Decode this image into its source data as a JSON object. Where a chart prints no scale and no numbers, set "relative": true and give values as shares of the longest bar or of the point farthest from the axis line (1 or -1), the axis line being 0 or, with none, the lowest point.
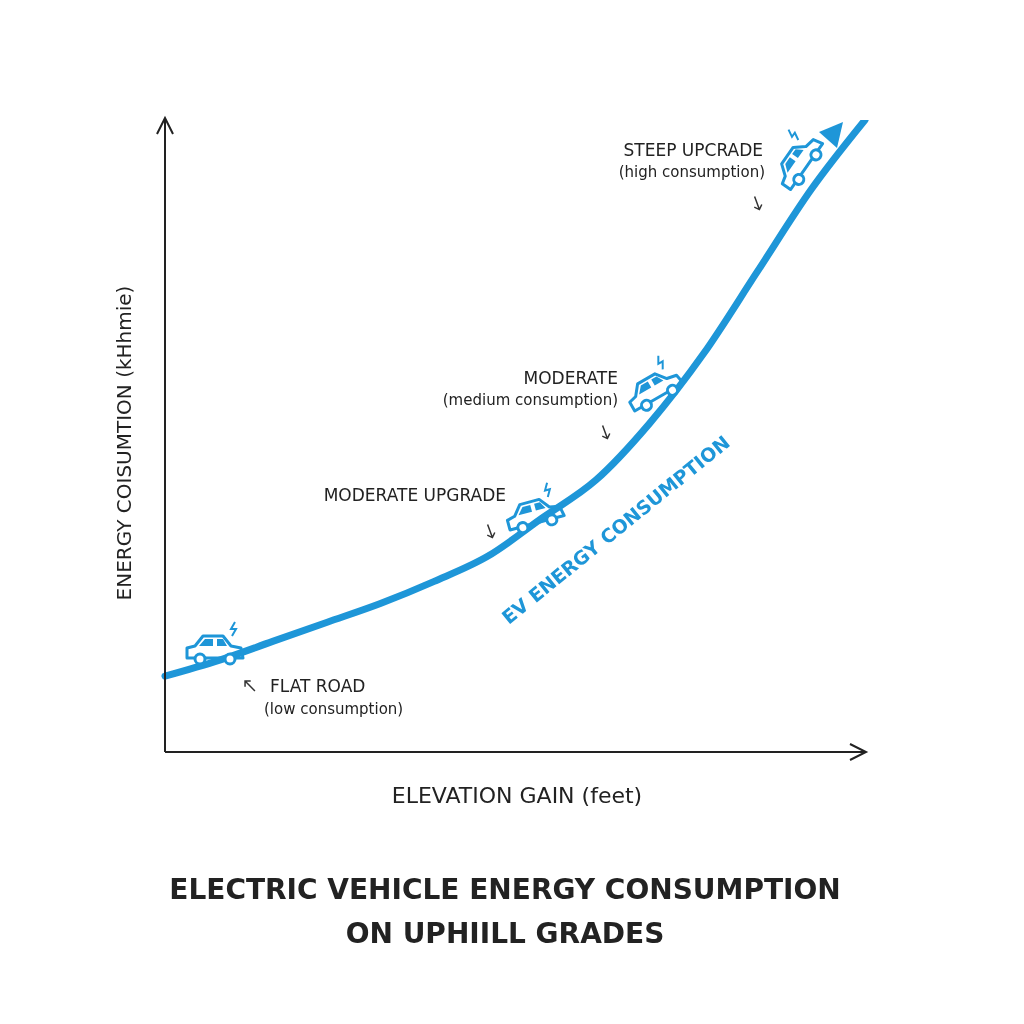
{
  "chart_data": {
    "type": "line",
    "title": "ELECTRIC VEHICLE ENERGY CONSUMPTION\nON UPHIILL GRADES",
    "xlabel": "ELEVATION GAIN (feet)",
    "ylabel": "ENERGY COISUMTION (kHhmie)",
    "relative": true,
    "categories": [
      null,
      null,
      null,
      null,
      null,
      null,
      null,
      null,
      null,
      null,
      null,
      null,
      null,
      null
    ],
    "series": [
      {
        "name": "EV ENERGY CONSUMPTION",
        "color": "#1e96d8",
        "values": [
          0.12,
          0.145,
          0.175,
          0.205,
          0.235,
          0.27,
          0.31,
          0.37,
          0.43,
          0.52,
          0.63,
          0.76,
          0.89,
          1.0
        ]
      }
    ],
    "annotations": [
      "FLAT ROAD",
      "(low consumption)",
      "MODERATE UPGRADE",
      "MODERATE",
      "(medium consumption)",
      "STEEP UPCRADE",
      "(high consumption)"
    ]
  }
}
